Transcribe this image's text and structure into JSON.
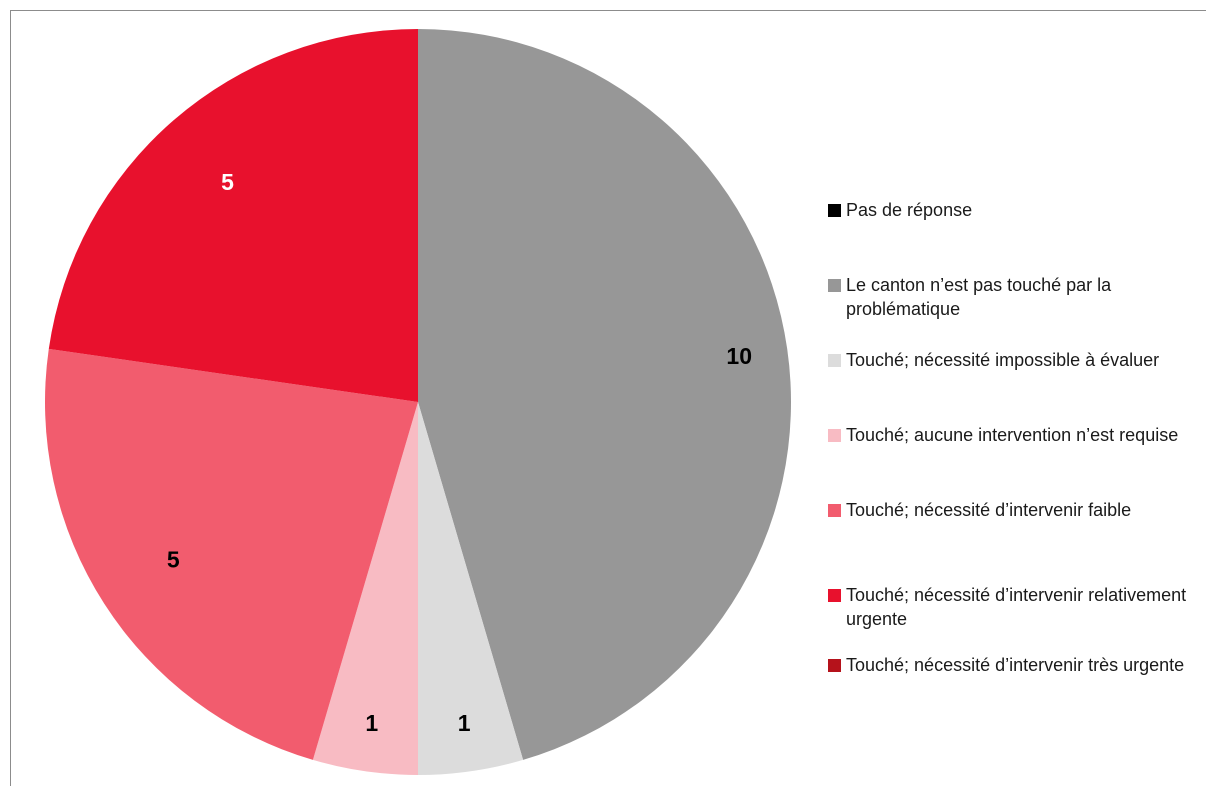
{
  "chart_data": {
    "type": "pie",
    "title": "",
    "slices": [
      {
        "label": "Le canton n’est pas touché par la problématique",
        "value": 10,
        "display": "10",
        "color": "#979797",
        "label_color": "#000000"
      },
      {
        "label": "Touché; nécessité impossible à évaluer",
        "value": 1,
        "display": "1",
        "color": "#dcdcdc",
        "label_color": "#000000"
      },
      {
        "label": "Touché; aucune intervention n’est requise",
        "value": 1,
        "display": "1",
        "color": "#f8bbc3",
        "label_color": "#000000"
      },
      {
        "label": "Touché; nécessité d’intervenir faible",
        "value": 5,
        "display": "5",
        "color": "#f25c6e",
        "label_color": "#000000"
      },
      {
        "label": "Touché; nécessité d’intervenir relativement urgente",
        "value": 5,
        "display": "5",
        "color": "#e8112d",
        "label_color": "#ffffff"
      }
    ],
    "legend": {
      "position": "right",
      "entries": [
        {
          "label": "Pas de réponse",
          "color": "#000000"
        },
        {
          "label": "Le canton n’est pas touché par la problématique",
          "color": "#979797"
        },
        {
          "label": "Touché; nécessité impossible à évaluer",
          "color": "#dcdcdc"
        },
        {
          "label": "Touché; aucune intervention n’est requise",
          "color": "#f8bbc3"
        },
        {
          "label": "Touché; nécessité d’intervenir faible",
          "color": "#f25c6e"
        },
        {
          "label": "Touché; nécessité d’intervenir relativement urgente",
          "color": "#e8112d"
        },
        {
          "label": "Touché; nécessité d’intervenir très urgente",
          "color": "#b5121b"
        }
      ]
    }
  }
}
